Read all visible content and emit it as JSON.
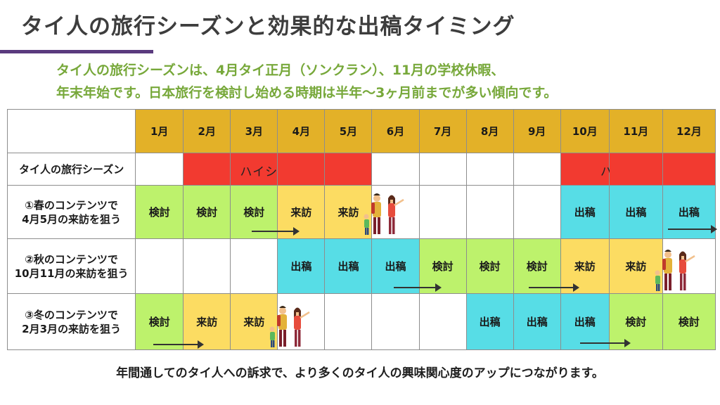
{
  "title": "タイ人の旅行シーズンと効果的な出稿タイミング",
  "subtitle": {
    "line1": "タイ人の旅行シーズンは、4月タイ正月（ソンクラン）、11月の学校休暇、",
    "line2": "年末年始です。日本旅行を検討し始める時期は半年〜3ヶ月前までが多い傾向です。"
  },
  "months": [
    "1月",
    "2月",
    "3月",
    "4月",
    "5月",
    "6月",
    "7月",
    "8月",
    "9月",
    "10月",
    "11月",
    "12月"
  ],
  "season_row": {
    "label": "タイ人の旅行シーズン",
    "high_label": "ハイシーズン"
  },
  "rows": [
    {
      "label1": "①春のコンテンツで",
      "label2": "4月5月の来訪を狙う",
      "cells": [
        "検討",
        "検討",
        "検討",
        "来訪",
        "来訪",
        "",
        "",
        "",
        "",
        "出稿",
        "出稿",
        "出稿"
      ]
    },
    {
      "label1": "②秋のコンテンツで",
      "label2": "10月11月の来訪を狙う",
      "cells": [
        "",
        "",
        "",
        "出稿",
        "出稿",
        "出稿",
        "検討",
        "検討",
        "検討",
        "来訪",
        "来訪",
        ""
      ]
    },
    {
      "label1": "③冬のコンテンツで",
      "label2": "2月3月の来訪を狙う",
      "cells": [
        "検討",
        "来訪",
        "来訪",
        "",
        "",
        "",
        "",
        "出稿",
        "出稿",
        "出稿",
        "検討",
        "検討"
      ]
    }
  ],
  "colors": {
    "month_header": "#e3b128",
    "high_season": "#f23a30",
    "consider": "#bdf26c",
    "visit": "#fcdc62",
    "publish": "#57dde6",
    "title_bar": "#5a3a7e",
    "subtitle": "#77a83a"
  },
  "footer": "年間通してのタイ人への訴求で、より多くのタイ人の興味関心度のアップにつながります。"
}
